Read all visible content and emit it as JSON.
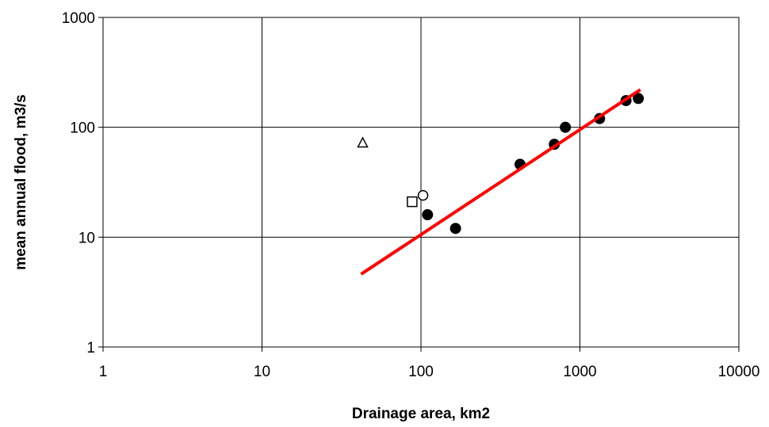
{
  "chart_data": {
    "type": "scatter",
    "title": "",
    "xlabel": "Drainage area, km2",
    "ylabel": "mean annual flood, m3/s",
    "x_scale": "log",
    "y_scale": "log",
    "xlim": [
      1,
      10000
    ],
    "ylim": [
      1,
      1000
    ],
    "x_ticks": [
      "1",
      "10",
      "100",
      "1000",
      "10000"
    ],
    "y_ticks": [
      "1",
      "10",
      "100",
      "1000"
    ],
    "grid": true,
    "legend": "none",
    "colors": {
      "regression": "#ff0000",
      "points": "#000000"
    },
    "series": [
      {
        "marker": "filled-circle",
        "points": [
          {
            "x": 110,
            "y": 16
          },
          {
            "x": 165,
            "y": 12
          },
          {
            "x": 420,
            "y": 46
          },
          {
            "x": 690,
            "y": 70
          },
          {
            "x": 810,
            "y": 100
          },
          {
            "x": 1330,
            "y": 120
          },
          {
            "x": 1950,
            "y": 175
          },
          {
            "x": 2330,
            "y": 183
          }
        ]
      },
      {
        "marker": "open-circle",
        "points": [
          {
            "x": 103,
            "y": 24
          }
        ]
      },
      {
        "marker": "open-square",
        "points": [
          {
            "x": 88,
            "y": 21
          }
        ]
      },
      {
        "marker": "open-triangle",
        "points": [
          {
            "x": 43,
            "y": 72
          }
        ]
      },
      {
        "marker": "line",
        "points": [
          {
            "x": 42,
            "y": 4.6
          },
          {
            "x": 2400,
            "y": 220
          }
        ]
      }
    ]
  }
}
